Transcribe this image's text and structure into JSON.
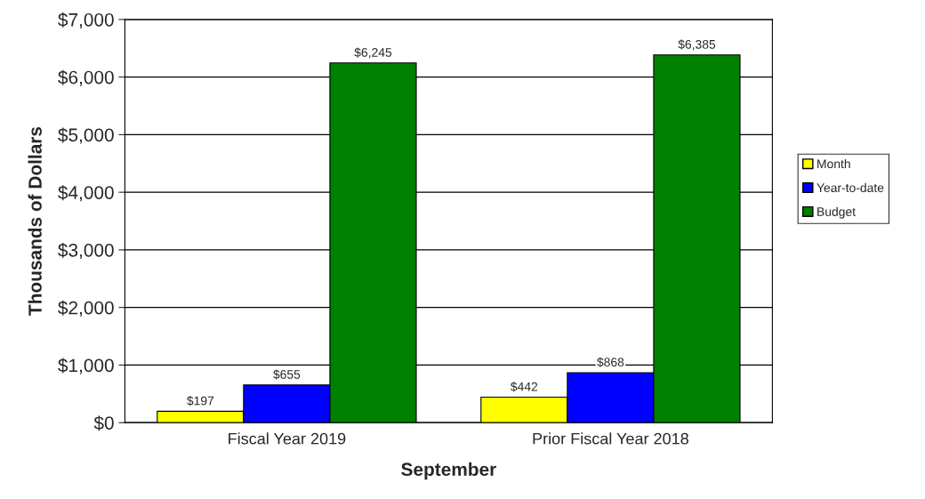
{
  "chart_data": {
    "type": "bar",
    "xlabel": "September",
    "ylabel": "Thousands of Dollars",
    "categories": [
      "Fiscal Year 2019",
      "Prior Fiscal Year 2018"
    ],
    "series": [
      {
        "name": "Month",
        "color": "#ffff00",
        "values": [
          197,
          442
        ],
        "value_labels": [
          "$197",
          "$442"
        ]
      },
      {
        "name": "Year-to-date",
        "color": "#0000ff",
        "values": [
          655,
          868
        ],
        "value_labels": [
          "$655",
          "$868"
        ]
      },
      {
        "name": "Budget",
        "color": "#008000",
        "values": [
          6245,
          6385
        ],
        "value_labels": [
          "$6,245",
          "$6,385"
        ]
      }
    ],
    "ylim": [
      0,
      7000
    ],
    "yticks": [
      {
        "value": 0,
        "label": "$0"
      },
      {
        "value": 1000,
        "label": "$1,000"
      },
      {
        "value": 2000,
        "label": "$2,000"
      },
      {
        "value": 3000,
        "label": "$3,000"
      },
      {
        "value": 4000,
        "label": "$4,000"
      },
      {
        "value": 5000,
        "label": "$5,000"
      },
      {
        "value": 6000,
        "label": "$6,000"
      },
      {
        "value": 7000,
        "label": "$7,000"
      }
    ],
    "grid": "y",
    "legend": "right"
  }
}
